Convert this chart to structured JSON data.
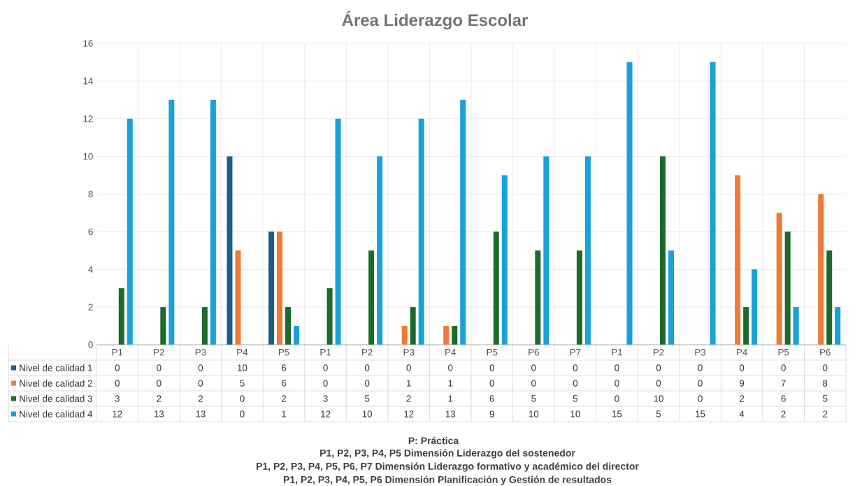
{
  "chart_data": {
    "type": "bar",
    "title": "Área Liderazgo Escolar",
    "categories": [
      "P1",
      "P2",
      "P3",
      "P4",
      "P5",
      "P1",
      "P2",
      "P3",
      "P4",
      "P5",
      "P6",
      "P7",
      "P1",
      "P2",
      "P3",
      "P4",
      "P5",
      "P6"
    ],
    "series": [
      {
        "name": "Nivel de calidad 1",
        "color": "#1f5c87",
        "values": [
          0,
          0,
          0,
          10,
          6,
          0,
          0,
          0,
          0,
          0,
          0,
          0,
          0,
          0,
          0,
          0,
          0,
          0
        ]
      },
      {
        "name": "Nivel de calidad 2",
        "color": "#ef7a33",
        "values": [
          0,
          0,
          0,
          5,
          6,
          0,
          0,
          1,
          1,
          0,
          0,
          0,
          0,
          0,
          0,
          9,
          7,
          8
        ]
      },
      {
        "name": "Nivel de calidad 3",
        "color": "#1c6b2b",
        "values": [
          3,
          2,
          2,
          0,
          2,
          3,
          5,
          2,
          1,
          6,
          5,
          5,
          0,
          10,
          0,
          2,
          6,
          5
        ]
      },
      {
        "name": "Nivel de calidad 4",
        "color": "#18a1da",
        "values": [
          12,
          13,
          13,
          0,
          1,
          12,
          10,
          12,
          13,
          9,
          10,
          10,
          15,
          5,
          15,
          4,
          2,
          2
        ]
      }
    ],
    "ylim": [
      0,
      16
    ],
    "yticks": [
      0,
      2,
      4,
      6,
      8,
      10,
      12,
      14,
      16
    ],
    "grid": true,
    "legend": "bottom",
    "data_labels": true,
    "annotations": [
      "P: Práctica",
      "P1, P2, P3, P4, P5   Dimensión Liderazgo del sostenedor",
      "P1, P2, P3, P4, P5, P6, P7   Dimensión Liderazgo formativo y académico del director",
      "P1, P2, P3, P4, P5, P6   Dimensión Planificación y Gestión de resultados"
    ]
  }
}
